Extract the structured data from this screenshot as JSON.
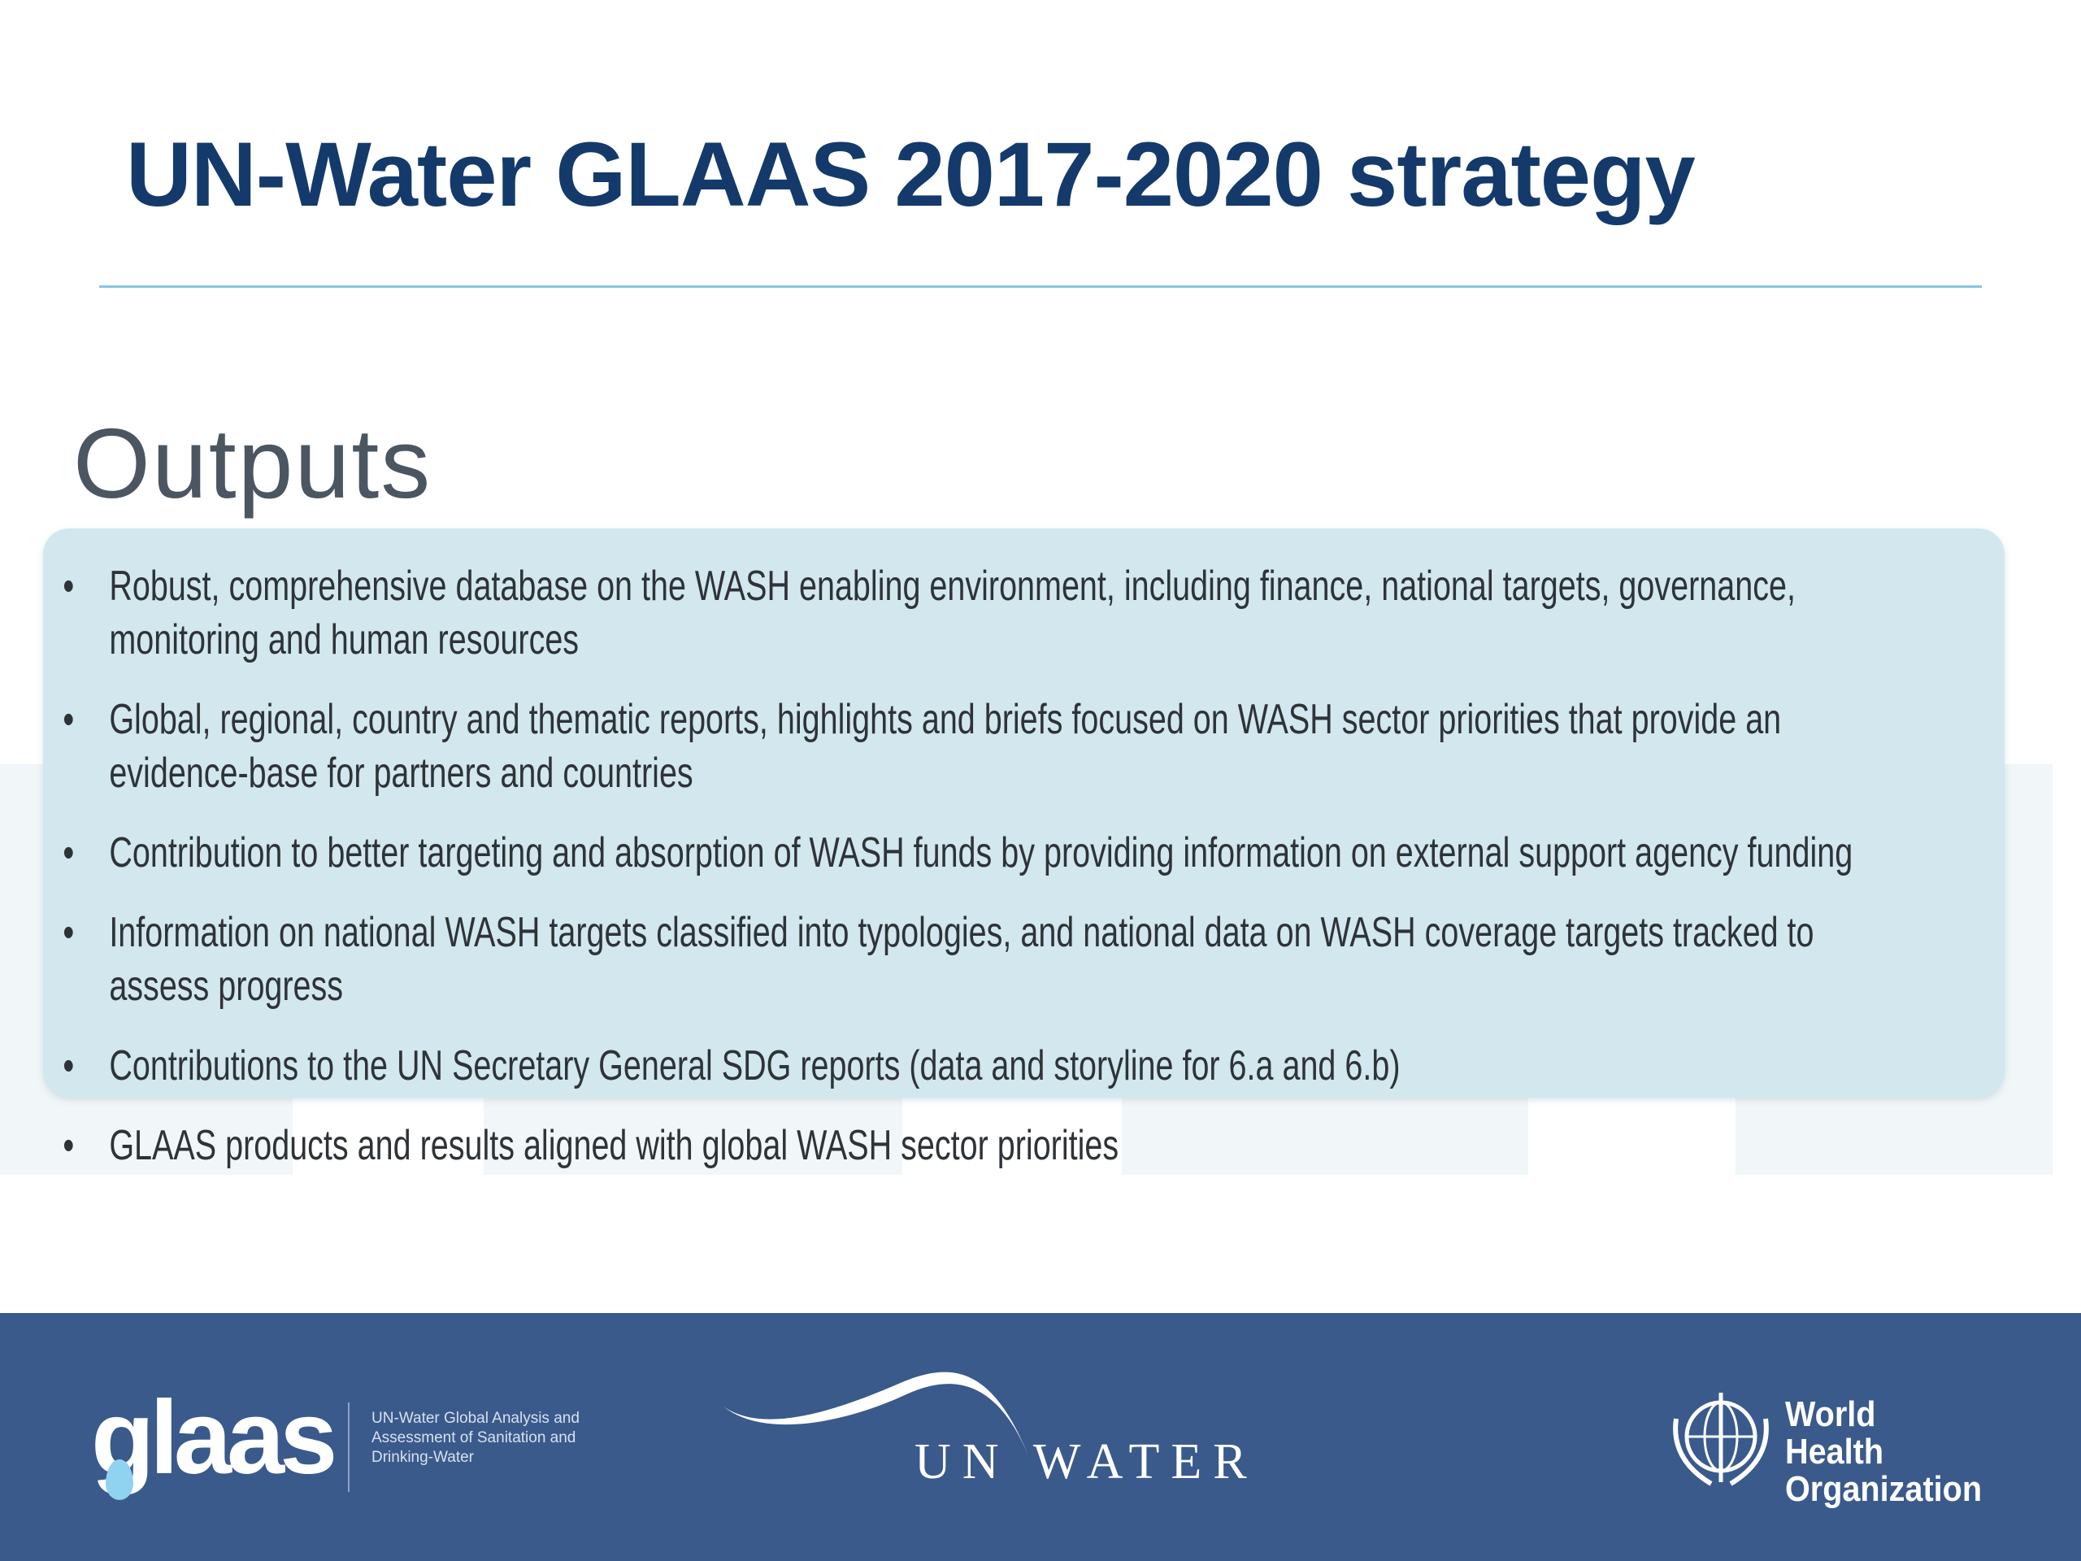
{
  "slide": {
    "title": "UN-Water GLAAS 2017-2020 strategy",
    "subheading": "Outputs",
    "bullets": [
      "Robust, comprehensive database on the WASH enabling environment, including finance, national targets, governance, monitoring and human resources",
      "Global, regional, country and thematic reports, highlights and briefs focused on WASH sector priorities that provide an evidence-base for partners and countries",
      "Contribution to better targeting and absorption of WASH funds by providing information on external support agency funding",
      "Information on national WASH targets classified into typologies, and national data on WASH coverage targets tracked to assess progress",
      "Contributions to the UN Secretary General SDG reports (data and storyline for 6.a and 6.b)",
      "GLAAS products and results aligned with global WASH sector priorities"
    ],
    "bullet_glyph": "•"
  },
  "footer": {
    "glaas_logo": "glaas",
    "glaas_tagline": "UN-Water Global Analysis and Assessment of Sanitation and Drinking-Water",
    "unwater_logo": "UN WATER",
    "who_logo": "World Health Organization"
  },
  "colors": {
    "title": "#143a6b",
    "rule": "#86c6de",
    "box": "#d2e7ee",
    "footer": "#3a5a8c"
  }
}
